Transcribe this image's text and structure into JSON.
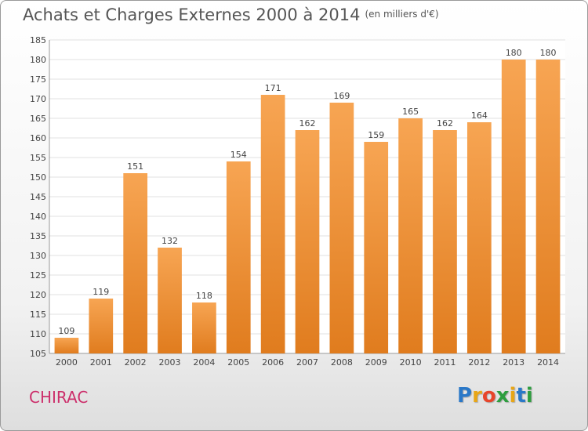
{
  "title": "Achats et Charges Externes 2000 à 2014",
  "subtitle": "(en milliers d'€)",
  "commune": "CHIRAC",
  "logo": {
    "letters": [
      {
        "ch": "P",
        "color": "#2a78c8"
      },
      {
        "ch": "r",
        "color": "#e8a617"
      },
      {
        "ch": "o",
        "color": "#e8452b"
      },
      {
        "ch": "x",
        "color": "#2e9e3f"
      },
      {
        "ch": "i",
        "color": "#e8a617"
      },
      {
        "ch": "t",
        "color": "#2a78c8"
      },
      {
        "ch": "i",
        "color": "#2e9e3f"
      }
    ]
  },
  "colors": {
    "bar_top": "#f7a553",
    "bar_bottom": "#e07c1e",
    "grid": "#e0e0e0",
    "axis_text": "#444444"
  },
  "chart_data": {
    "type": "bar",
    "categories": [
      "2000",
      "2001",
      "2002",
      "2003",
      "2004",
      "2005",
      "2006",
      "2007",
      "2008",
      "2009",
      "2010",
      "2011",
      "2012",
      "2013",
      "2014"
    ],
    "values": [
      109,
      119,
      151,
      132,
      118,
      154,
      171,
      162,
      169,
      159,
      165,
      162,
      164,
      180,
      180
    ],
    "ylim": [
      105,
      185
    ],
    "ytick_step": 5,
    "yticks": [
      "105",
      "110",
      "115",
      "120",
      "125",
      "130",
      "135",
      "140",
      "145",
      "150",
      "155",
      "160",
      "165",
      "170",
      "175",
      "180",
      "185"
    ],
    "grid": true,
    "data_labels": true
  }
}
